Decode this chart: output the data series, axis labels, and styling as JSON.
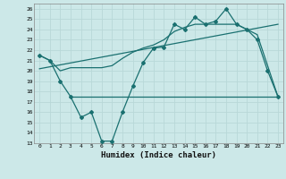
{
  "xlabel": "Humidex (Indice chaleur)",
  "background_color": "#cce8e8",
  "grid_color": "#b0d8d8",
  "line_color": "#1a7070",
  "xlim": [
    -0.5,
    23.5
  ],
  "ylim": [
    13,
    26.5
  ],
  "yticks": [
    13,
    14,
    15,
    16,
    17,
    18,
    19,
    20,
    21,
    22,
    23,
    24,
    25,
    26
  ],
  "xticks": [
    0,
    1,
    2,
    3,
    4,
    5,
    6,
    7,
    8,
    9,
    10,
    11,
    12,
    13,
    14,
    15,
    16,
    17,
    18,
    19,
    20,
    21,
    22,
    23
  ],
  "main_x": [
    0,
    1,
    2,
    3,
    4,
    5,
    6,
    7,
    8,
    9,
    10,
    11,
    12,
    13,
    14,
    15,
    16,
    17,
    18,
    19,
    20,
    21,
    22,
    23
  ],
  "main_y": [
    21.5,
    21.0,
    19.0,
    17.5,
    15.5,
    16.0,
    13.2,
    13.2,
    16.0,
    18.5,
    20.8,
    22.2,
    22.3,
    24.5,
    24.0,
    25.2,
    24.5,
    24.8,
    26.0,
    24.5,
    24.0,
    23.0,
    20.0,
    17.5
  ],
  "smooth_x": [
    0,
    1,
    2,
    3,
    4,
    5,
    6,
    7,
    8,
    9,
    10,
    11,
    12,
    13,
    14,
    15,
    16,
    17,
    18,
    19,
    20,
    21,
    22,
    23
  ],
  "smooth_y": [
    21.5,
    21.0,
    20.0,
    20.3,
    20.3,
    20.3,
    20.3,
    20.5,
    21.2,
    21.8,
    22.2,
    22.5,
    23.0,
    23.8,
    24.2,
    24.5,
    24.5,
    24.5,
    24.5,
    24.5,
    24.0,
    23.5,
    20.5,
    17.5
  ],
  "trend_x": [
    0,
    23
  ],
  "trend_y": [
    20.2,
    24.5
  ],
  "hline_y": 17.5,
  "hline_x_start": 3,
  "hline_x_end": 23
}
